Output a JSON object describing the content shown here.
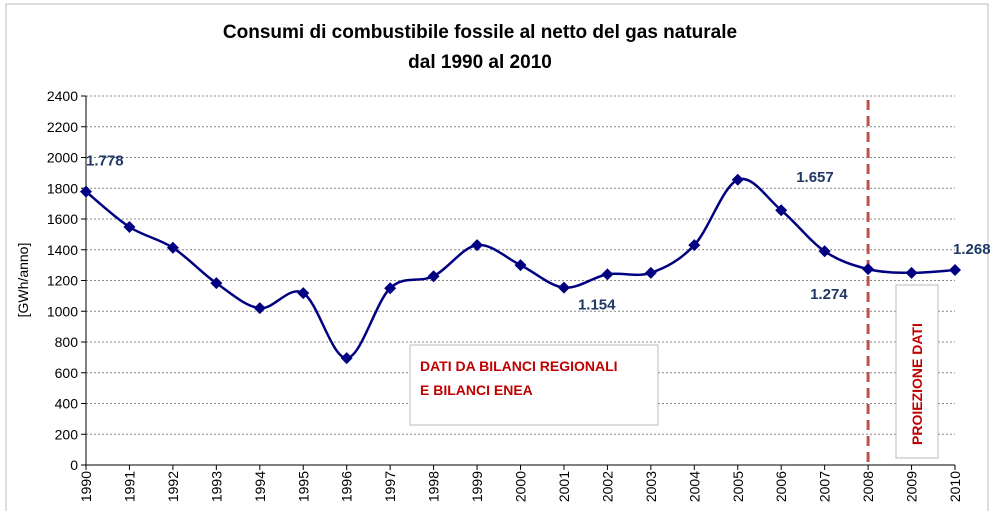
{
  "chart_data": {
    "type": "line",
    "title": [
      "Consumi di combustibile fossile al netto del gas naturale",
      "dal 1990 al 2010"
    ],
    "y_label": "[GWh/anno]",
    "categories": [
      "1990",
      "1991",
      "1992",
      "1993",
      "1994",
      "1995",
      "1996",
      "1997",
      "1998",
      "1999",
      "2000",
      "2001",
      "2002",
      "2003",
      "2004",
      "2005",
      "2006",
      "2007",
      "2008",
      "2009",
      "2010"
    ],
    "series": [
      {
        "name": "Consumi",
        "color": "#000080",
        "values": [
          1778,
          1548,
          1413,
          1183,
          1020,
          1118,
          695,
          1150,
          1228,
          1430,
          1300,
          1154,
          1240,
          1250,
          1430,
          1855,
          1657,
          1390,
          1274,
          1250,
          1268
        ],
        "value_labels": [
          "1.778",
          null,
          null,
          null,
          null,
          null,
          null,
          null,
          null,
          null,
          null,
          "1.154",
          null,
          null,
          null,
          null,
          "1.657",
          null,
          "1.274",
          null,
          "1.268"
        ]
      }
    ],
    "ylim": [
      0,
      2400
    ],
    "yticks": [
      0,
      200,
      400,
      600,
      800,
      1000,
      1200,
      1400,
      1600,
      1800,
      2000,
      2200,
      2400
    ],
    "grid": true,
    "smooth": true,
    "vline": {
      "category": "2008",
      "color": "#c0504d"
    },
    "annotations": [
      {
        "lines": [
          "DATI DA BILANCI REGIONALI",
          "E BILANCI ENEA"
        ]
      },
      {
        "lines": [
          "PROIEZIONE DATI"
        ]
      }
    ]
  }
}
